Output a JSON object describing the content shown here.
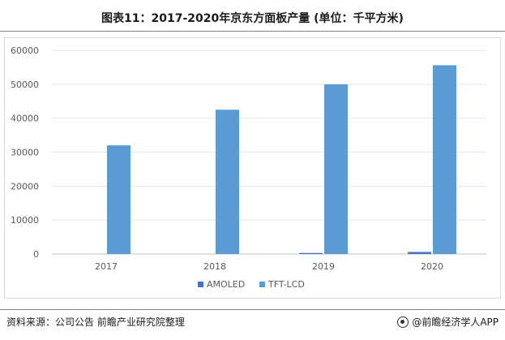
{
  "title": "图表11：2017-2020年京东方面板产量 (单位：千平方米)",
  "footer": {
    "source": "资料来源：公司公告 前瞻产业研究院整理",
    "brand": "@前瞻经济学人APP"
  },
  "colors": {
    "AMOLED": "#4472c4",
    "TFT-LCD": "#5b9bd5"
  },
  "chart_data": {
    "type": "bar",
    "categories": [
      "2017",
      "2018",
      "2019",
      "2020"
    ],
    "series": [
      {
        "name": "AMOLED",
        "values": [
          0,
          0,
          300,
          600
        ]
      },
      {
        "name": "TFT-LCD",
        "values": [
          32000,
          42500,
          50000,
          55600
        ]
      }
    ],
    "ylim": [
      0,
      60000
    ],
    "yticks": [
      0,
      10000,
      20000,
      30000,
      40000,
      50000,
      60000
    ],
    "grid": true,
    "legend": "bottom"
  }
}
